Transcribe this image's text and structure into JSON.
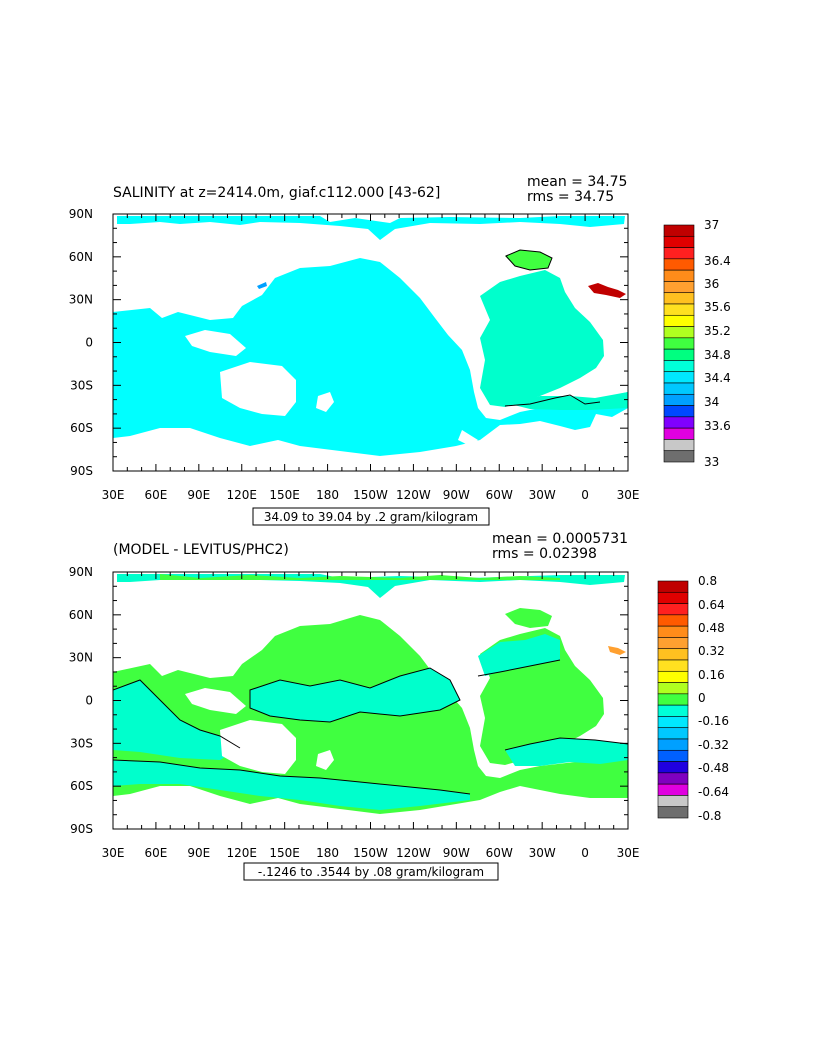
{
  "chart_data": [
    {
      "type": "heatmap",
      "title": "SALINITY at z=2414.0m, giaf.c112.000 [43-62]",
      "stats": [
        "mean = 34.75",
        "rms = 34.75"
      ],
      "range_label": "34.09 to 39.04 by .2 gram/kilogram",
      "x_ticks": [
        "30E",
        "60E",
        "90E",
        "120E",
        "150E",
        "180",
        "150W",
        "120W",
        "90W",
        "60W",
        "30W",
        "0",
        "30E"
      ],
      "y_ticks": [
        "90N",
        "60N",
        "30N",
        "0",
        "30S",
        "60S",
        "90S"
      ],
      "xlim": [
        30,
        390
      ],
      "ylim": [
        -90,
        90
      ],
      "colorbar": {
        "labels": [
          "37",
          "36.4",
          "36",
          "35.6",
          "35.2",
          "34.8",
          "34.4",
          "34",
          "33.6",
          "33"
        ],
        "levels": [
          37,
          36.8,
          36.6,
          36.4,
          36.2,
          36,
          35.8,
          35.6,
          35.4,
          35.2,
          35,
          34.8,
          34.6,
          34.4,
          34.2,
          34,
          33.8,
          33.6,
          33.4,
          33.2,
          33
        ],
        "colors": [
          "#c00000",
          "#e00000",
          "#ff2020",
          "#ff5a00",
          "#ff8c1a",
          "#ffa030",
          "#ffc020",
          "#ffe020",
          "#ffff00",
          "#b0ff20",
          "#40ff40",
          "#00ff80",
          "#00ffd8",
          "#00e8ff",
          "#00c8ff",
          "#00a0ff",
          "#0048ff",
          "#8000ff",
          "#e000e0",
          "#c8c8c8",
          "#6e6e6e"
        ]
      },
      "field": {
        "dominant_value_range": [
          34.6,
          34.8
        ],
        "atlantic_value_range": [
          34.8,
          35.0
        ],
        "mediterranean_value": 36.9,
        "note_levels": [
          34.8,
          35.0
        ]
      }
    },
    {
      "type": "heatmap",
      "title": "(MODEL - LEVITUS/PHC2)",
      "stats": [
        "mean = 0.0005731",
        "rms = 0.02398"
      ],
      "range_label": "-.1246 to .3544 by .08 gram/kilogram",
      "x_ticks": [
        "30E",
        "60E",
        "90E",
        "120E",
        "150E",
        "180",
        "150W",
        "120W",
        "90W",
        "60W",
        "30W",
        "0",
        "30E"
      ],
      "y_ticks": [
        "90N",
        "60N",
        "30N",
        "0",
        "30S",
        "60S",
        "90S"
      ],
      "xlim": [
        30,
        390
      ],
      "ylim": [
        -90,
        90
      ],
      "colorbar": {
        "labels": [
          "0.8",
          "0.64",
          "0.48",
          "0.32",
          "0.16",
          "0",
          "-0.16",
          "-0.32",
          "-0.48",
          "-0.64",
          "-0.8"
        ],
        "levels": [
          0.8,
          0.72,
          0.64,
          0.56,
          0.48,
          0.4,
          0.32,
          0.24,
          0.16,
          0.08,
          0,
          -0.08,
          -0.16,
          -0.24,
          -0.32,
          -0.4,
          -0.48,
          -0.56,
          -0.64,
          -0.72,
          -0.8
        ],
        "colors": [
          "#c00000",
          "#e00000",
          "#ff2020",
          "#ff5a00",
          "#ff8c1a",
          "#ffa030",
          "#ffc020",
          "#ffe020",
          "#ffff00",
          "#b0ff20",
          "#40ff40",
          "#00ffd8",
          "#00e8ff",
          "#00c8ff",
          "#00a0ff",
          "#0060ff",
          "#2000e0",
          "#8000c0",
          "#e000e0",
          "#c8c8c8",
          "#6e6e6e"
        ]
      }
    }
  ]
}
